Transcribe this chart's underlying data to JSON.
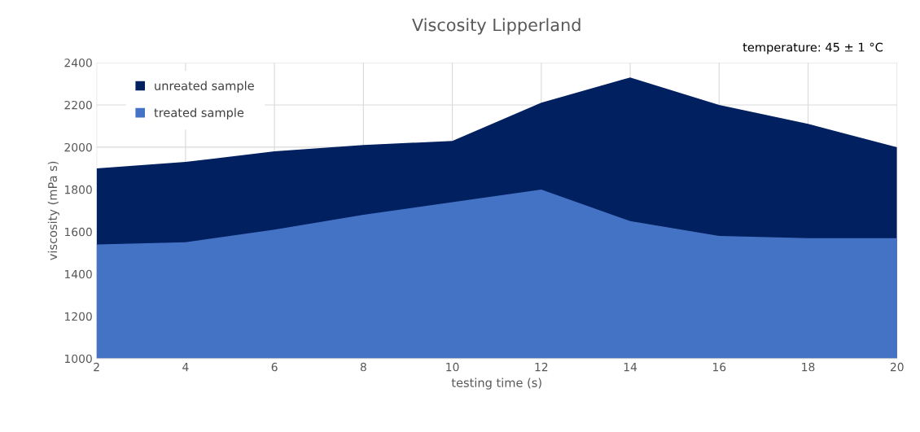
{
  "chart_data": {
    "type": "area",
    "title": "Viscosity Lipperland",
    "xlabel": "testing time (s)",
    "ylabel": "viscosity (mPa s)",
    "x": [
      2,
      4,
      6,
      8,
      10,
      12,
      14,
      16,
      18,
      20
    ],
    "series": [
      {
        "name": "unreated sample",
        "color": "#002060",
        "values": [
          1900,
          1930,
          1980,
          2010,
          2030,
          2210,
          2330,
          2200,
          2110,
          2000
        ]
      },
      {
        "name": "treated sample",
        "color": "#4472c4",
        "values": [
          1540,
          1550,
          1610,
          1680,
          1740,
          1800,
          1650,
          1580,
          1570,
          1570
        ]
      }
    ],
    "xlim": [
      2,
      20
    ],
    "xticks": [
      2,
      4,
      6,
      8,
      10,
      12,
      14,
      16,
      18,
      20
    ],
    "ylim": [
      1000,
      2400
    ],
    "yticks": [
      1000,
      1200,
      1400,
      1600,
      1800,
      2000,
      2200,
      2400
    ],
    "grid": true,
    "legend": "top left",
    "annotations": [
      "temperature: 45 ± 1 °C"
    ]
  }
}
